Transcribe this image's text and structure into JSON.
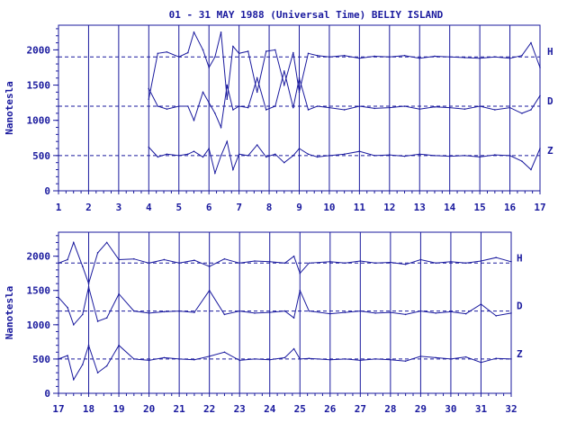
{
  "title": "01 - 31 MAY 1988 (Universal Time) BELIY ISLAND",
  "colors": {
    "ink": "#1a1a9e",
    "background": "#ffffff"
  },
  "chart_data": [
    {
      "type": "line",
      "xlabel": "",
      "ylabel": "Nanotesla",
      "xlim": [
        1,
        17
      ],
      "ylim": [
        0,
        2350
      ],
      "x_ticks": [
        "1",
        "2",
        "3",
        "4",
        "5",
        "6",
        "7",
        "8",
        "9",
        "10",
        "11",
        "12",
        "13",
        "14",
        "15",
        "16",
        "17"
      ],
      "y_ticks": [
        "0",
        "500",
        "1000",
        "1500",
        "2000"
      ],
      "baselines": [
        1900,
        1200,
        500
      ],
      "grid": "vertical day lines",
      "series": [
        {
          "name": "H",
          "x": [
            4.0,
            4.3,
            4.6,
            5.0,
            5.3,
            5.5,
            5.8,
            6.0,
            6.2,
            6.4,
            6.6,
            6.8,
            7.0,
            7.3,
            7.6,
            7.9,
            8.2,
            8.5,
            8.8,
            9.0,
            9.3,
            9.6,
            10.0,
            10.5,
            11.0,
            11.5,
            12.0,
            12.5,
            13.0,
            13.5,
            14.0,
            14.5,
            15.0,
            15.5,
            16.0,
            16.4,
            16.7,
            17.0
          ],
          "values": [
            1300,
            1950,
            1970,
            1900,
            1960,
            2250,
            2000,
            1750,
            1900,
            2250,
            1300,
            2050,
            1950,
            1980,
            1400,
            1980,
            2000,
            1500,
            1960,
            1400,
            1950,
            1920,
            1900,
            1920,
            1880,
            1910,
            1900,
            1920,
            1880,
            1910,
            1900,
            1890,
            1880,
            1900,
            1880,
            1920,
            2100,
            1750
          ]
        },
        {
          "name": "D",
          "x": [
            4.0,
            4.3,
            4.6,
            5.0,
            5.3,
            5.5,
            5.8,
            6.0,
            6.2,
            6.4,
            6.6,
            6.8,
            7.0,
            7.3,
            7.6,
            7.9,
            8.2,
            8.5,
            8.8,
            9.0,
            9.3,
            9.6,
            10.0,
            10.5,
            11.0,
            11.5,
            12.0,
            12.5,
            13.0,
            13.5,
            14.0,
            14.5,
            15.0,
            15.5,
            16.0,
            16.4,
            16.7,
            17.0
          ],
          "values": [
            1450,
            1200,
            1160,
            1200,
            1200,
            1000,
            1400,
            1250,
            1100,
            900,
            1500,
            1150,
            1200,
            1180,
            1600,
            1150,
            1200,
            1700,
            1180,
            1600,
            1150,
            1200,
            1180,
            1150,
            1200,
            1170,
            1180,
            1200,
            1160,
            1190,
            1180,
            1160,
            1200,
            1150,
            1180,
            1100,
            1150,
            1350
          ]
        },
        {
          "name": "Z",
          "x": [
            4.0,
            4.3,
            4.6,
            5.0,
            5.3,
            5.5,
            5.8,
            6.0,
            6.2,
            6.4,
            6.6,
            6.8,
            7.0,
            7.3,
            7.6,
            7.9,
            8.2,
            8.5,
            8.8,
            9.0,
            9.3,
            9.6,
            10.0,
            10.5,
            11.0,
            11.5,
            12.0,
            12.5,
            13.0,
            13.5,
            14.0,
            14.5,
            15.0,
            15.5,
            16.0,
            16.4,
            16.7,
            17.0
          ],
          "values": [
            620,
            480,
            520,
            500,
            520,
            560,
            480,
            600,
            250,
            500,
            700,
            300,
            520,
            500,
            650,
            480,
            520,
            400,
            500,
            600,
            520,
            480,
            500,
            520,
            560,
            500,
            510,
            490,
            520,
            500,
            490,
            500,
            480,
            510,
            500,
            420,
            300,
            600
          ]
        }
      ]
    },
    {
      "type": "line",
      "xlabel": "",
      "ylabel": "Nanotesla",
      "xlim": [
        17,
        32
      ],
      "ylim": [
        0,
        2350
      ],
      "x_ticks": [
        "17",
        "18",
        "19",
        "20",
        "21",
        "22",
        "23",
        "24",
        "25",
        "26",
        "27",
        "28",
        "29",
        "30",
        "31",
        "32"
      ],
      "y_ticks": [
        "0",
        "500",
        "1000",
        "1500",
        "2000"
      ],
      "baselines": [
        1900,
        1200,
        500
      ],
      "grid": "vertical day lines",
      "series": [
        {
          "name": "H",
          "x": [
            17.0,
            17.3,
            17.5,
            17.8,
            18.0,
            18.3,
            18.6,
            19.0,
            19.5,
            20.0,
            20.5,
            21.0,
            21.5,
            22.0,
            22.5,
            23.0,
            23.5,
            24.0,
            24.5,
            24.8,
            25.0,
            25.3,
            26.0,
            26.5,
            27.0,
            27.5,
            28.0,
            28.5,
            29.0,
            29.5,
            30.0,
            30.5,
            31.0,
            31.5,
            32.0
          ],
          "values": [
            1900,
            1950,
            2200,
            1850,
            1600,
            2050,
            2200,
            1950,
            1960,
            1900,
            1950,
            1900,
            1940,
            1850,
            1960,
            1900,
            1930,
            1920,
            1900,
            2000,
            1750,
            1900,
            1920,
            1900,
            1930,
            1900,
            1910,
            1880,
            1950,
            1900,
            1920,
            1900,
            1930,
            1980,
            1920
          ]
        },
        {
          "name": "D",
          "x": [
            17.0,
            17.3,
            17.5,
            17.8,
            18.0,
            18.3,
            18.6,
            19.0,
            19.5,
            20.0,
            20.5,
            21.0,
            21.5,
            22.0,
            22.5,
            23.0,
            23.5,
            24.0,
            24.5,
            24.8,
            25.0,
            25.3,
            26.0,
            26.5,
            27.0,
            27.5,
            28.0,
            28.5,
            29.0,
            29.5,
            30.0,
            30.5,
            31.0,
            31.5,
            32.0
          ],
          "values": [
            1400,
            1250,
            1000,
            1150,
            1550,
            1050,
            1100,
            1450,
            1200,
            1170,
            1190,
            1200,
            1180,
            1500,
            1150,
            1200,
            1170,
            1180,
            1200,
            1100,
            1500,
            1200,
            1160,
            1180,
            1200,
            1170,
            1180,
            1150,
            1200,
            1170,
            1190,
            1160,
            1300,
            1130,
            1170
          ]
        },
        {
          "name": "Z",
          "x": [
            17.0,
            17.3,
            17.5,
            17.8,
            18.0,
            18.3,
            18.6,
            19.0,
            19.5,
            20.0,
            20.5,
            21.0,
            21.5,
            22.0,
            22.5,
            23.0,
            23.5,
            24.0,
            24.5,
            24.8,
            25.0,
            25.3,
            26.0,
            26.5,
            27.0,
            27.5,
            28.0,
            28.5,
            29.0,
            29.5,
            30.0,
            30.5,
            31.0,
            31.5,
            32.0
          ],
          "values": [
            500,
            550,
            200,
            420,
            700,
            300,
            400,
            700,
            500,
            480,
            520,
            500,
            490,
            540,
            600,
            480,
            500,
            490,
            520,
            650,
            500,
            510,
            490,
            500,
            480,
            500,
            490,
            470,
            540,
            520,
            500,
            530,
            450,
            510,
            500
          ]
        }
      ]
    }
  ]
}
